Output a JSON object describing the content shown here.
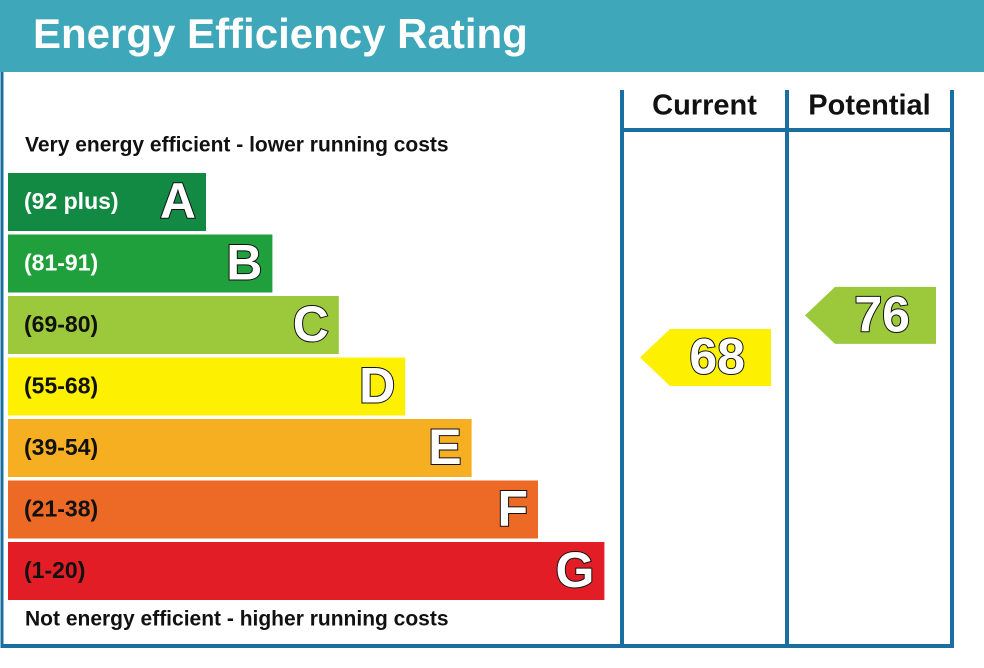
{
  "title": "Energy Efficiency Rating",
  "top_note": "Very energy efficient - lower running costs",
  "bottom_note": "Not energy efficient - higher running costs",
  "bands": [
    {
      "range": "(92 plus)",
      "letter": "A",
      "color": "#138a43"
    },
    {
      "range": "(81-91)",
      "letter": "B",
      "color": "#20a03c"
    },
    {
      "range": "(69-80)",
      "letter": "C",
      "color": "#9cc93b"
    },
    {
      "range": "(55-68)",
      "letter": "D",
      "color": "#fdf000"
    },
    {
      "range": "(39-54)",
      "letter": "E",
      "color": "#f7af22"
    },
    {
      "range": "(21-38)",
      "letter": "F",
      "color": "#ec6a25"
    },
    {
      "range": "(1-20)",
      "letter": "G",
      "color": "#e21d25"
    }
  ],
  "columns": [
    {
      "label": "Current",
      "value": 68
    },
    {
      "label": "Potential",
      "value": 76
    }
  ]
}
